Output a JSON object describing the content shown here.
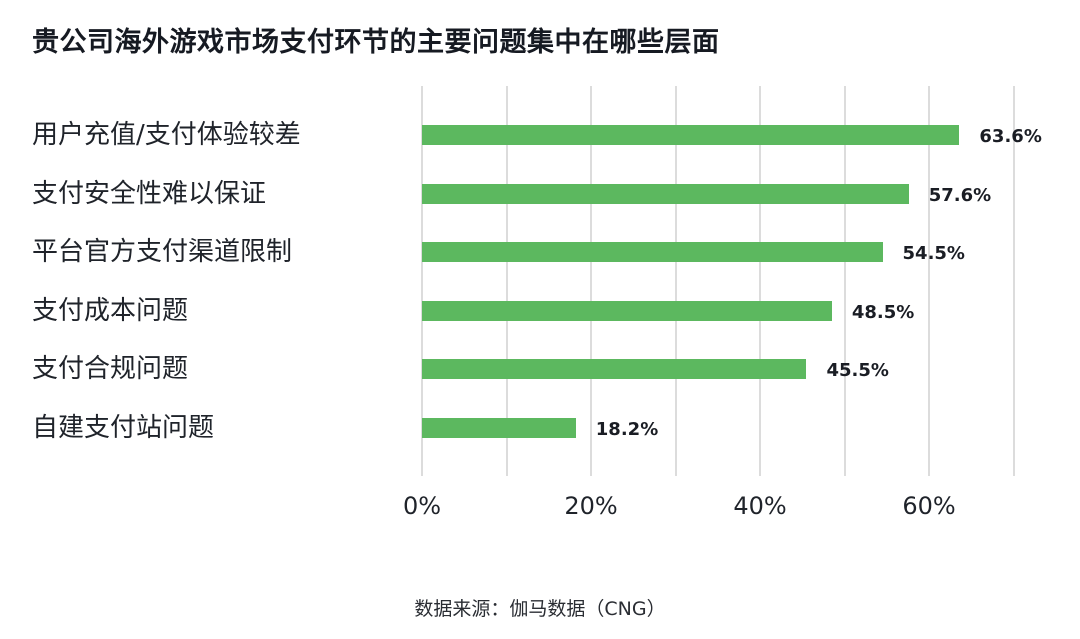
{
  "chart_data": {
    "type": "bar",
    "orientation": "horizontal",
    "title": "贵公司海外游戏市场支付环节的主要问题集中在哪些层面",
    "categories": [
      "用户充值/支付体验较差",
      "支付安全性难以保证",
      "平台官方支付渠道限制",
      "支付成本问题",
      "支付合规问题",
      "自建支付站问题"
    ],
    "values": [
      63.6,
      57.6,
      54.5,
      48.5,
      45.5,
      18.2
    ],
    "value_labels": [
      "63.6%",
      "57.6%",
      "54.5%",
      "48.5%",
      "45.5%",
      "18.2%"
    ],
    "xlabel": "",
    "ylabel": "",
    "xlim": [
      0,
      70
    ],
    "x_ticks": [
      "0%",
      "20%",
      "40%",
      "60%"
    ],
    "grid": true,
    "bar_color": "#5cb85f",
    "source": "数据来源：伽马数据（CNG）"
  },
  "title": "贵公司海外游戏市场支付环节的主要问题集中在哪些层面",
  "source": "数据来源：伽马数据（CNG）"
}
